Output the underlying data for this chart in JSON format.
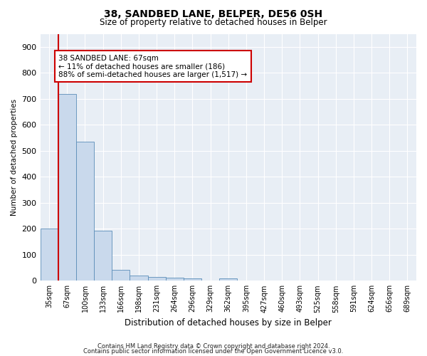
{
  "title1": "38, SANDBED LANE, BELPER, DE56 0SH",
  "title2": "Size of property relative to detached houses in Belper",
  "xlabel": "Distribution of detached houses by size in Belper",
  "ylabel": "Number of detached properties",
  "bar_labels": [
    "35sqm",
    "67sqm",
    "100sqm",
    "133sqm",
    "166sqm",
    "198sqm",
    "231sqm",
    "264sqm",
    "296sqm",
    "329sqm",
    "362sqm",
    "395sqm",
    "427sqm",
    "460sqm",
    "493sqm",
    "525sqm",
    "558sqm",
    "591sqm",
    "624sqm",
    "656sqm",
    "689sqm"
  ],
  "bar_values": [
    200,
    718,
    535,
    193,
    42,
    20,
    15,
    13,
    10,
    0,
    10,
    0,
    0,
    0,
    0,
    0,
    0,
    0,
    0,
    0,
    0
  ],
  "bar_color": "#c9d9ec",
  "bar_edge_color": "#5b8db8",
  "vline_color": "#cc0000",
  "annotation_line1": "38 SANDBED LANE: 67sqm",
  "annotation_line2": "← 11% of detached houses are smaller (186)",
  "annotation_line3": "88% of semi-detached houses are larger (1,517) →",
  "annotation_box_color": "#ffffff",
  "annotation_box_edge": "#cc0000",
  "ylim": [
    0,
    950
  ],
  "yticks": [
    0,
    100,
    200,
    300,
    400,
    500,
    600,
    700,
    800,
    900
  ],
  "background_color": "#e8eef5",
  "grid_color": "#ffffff",
  "footer1": "Contains HM Land Registry data © Crown copyright and database right 2024.",
  "footer2": "Contains public sector information licensed under the Open Government Licence v3.0."
}
